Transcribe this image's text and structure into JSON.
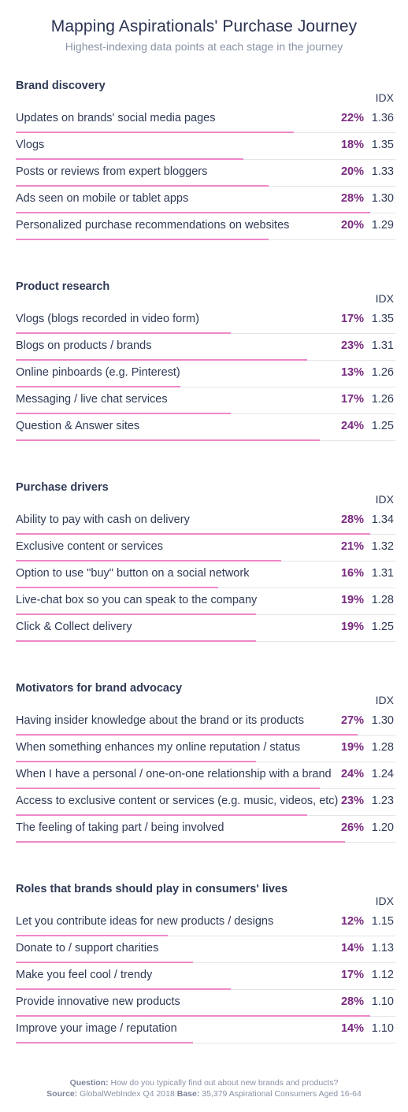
{
  "header": {
    "title": "Mapping Aspirationals' Purchase Journey",
    "subtitle": "Highest-indexing data points at each stage in the journey"
  },
  "idx_label": "IDX",
  "chart_data": {
    "type": "bar",
    "orientation": "horizontal",
    "value_max": 30,
    "sections": [
      {
        "title": "Brand discovery",
        "rows": [
          {
            "label": "Updates on brands' social media pages",
            "pct": 22,
            "pct_text": "22%",
            "idx": "1.36"
          },
          {
            "label": "Vlogs",
            "pct": 18,
            "pct_text": "18%",
            "idx": "1.35"
          },
          {
            "label": "Posts or reviews from expert bloggers",
            "pct": 20,
            "pct_text": "20%",
            "idx": "1.33"
          },
          {
            "label": "Ads seen on mobile or tablet apps",
            "pct": 28,
            "pct_text": "28%",
            "idx": "1.30"
          },
          {
            "label": "Personalized purchase recommendations on websites",
            "pct": 20,
            "pct_text": "20%",
            "idx": "1.29"
          }
        ]
      },
      {
        "title": "Product research",
        "rows": [
          {
            "label": "Vlogs (blogs recorded in video form)",
            "pct": 17,
            "pct_text": "17%",
            "idx": "1.35"
          },
          {
            "label": "Blogs on products / brands",
            "pct": 23,
            "pct_text": "23%",
            "idx": "1.31"
          },
          {
            "label": "Online pinboards (e.g. Pinterest)",
            "pct": 13,
            "pct_text": "13%",
            "idx": "1.26"
          },
          {
            "label": "Messaging / live chat services",
            "pct": 17,
            "pct_text": "17%",
            "idx": "1.26"
          },
          {
            "label": "Question & Answer sites",
            "pct": 24,
            "pct_text": "24%",
            "idx": "1.25"
          }
        ]
      },
      {
        "title": "Purchase drivers",
        "rows": [
          {
            "label": "Ability to pay with cash on delivery",
            "pct": 28,
            "pct_text": "28%",
            "idx": "1.34"
          },
          {
            "label": "Exclusive content or services",
            "pct": 21,
            "pct_text": "21%",
            "idx": "1.32"
          },
          {
            "label": "Option to use \"buy\" button on a social network",
            "pct": 16,
            "pct_text": "16%",
            "idx": "1.31"
          },
          {
            "label": "Live-chat box so you can speak to the company",
            "pct": 19,
            "pct_text": "19%",
            "idx": "1.28"
          },
          {
            "label": "Click & Collect delivery",
            "pct": 19,
            "pct_text": "19%",
            "idx": "1.25"
          }
        ]
      },
      {
        "title": "Motivators for brand advocacy",
        "rows": [
          {
            "label": "Having insider knowledge about the brand or its products",
            "pct": 27,
            "pct_text": "27%",
            "idx": "1.30"
          },
          {
            "label": "When something enhances my online reputation / status",
            "pct": 19,
            "pct_text": "19%",
            "idx": "1.28"
          },
          {
            "label": "When I have a personal / one-on-one relationship with a brand",
            "pct": 24,
            "pct_text": "24%",
            "idx": "1.24"
          },
          {
            "label": "Access to exclusive content or services (e.g. music, videos, etc)",
            "pct": 23,
            "pct_text": "23%",
            "idx": "1.23"
          },
          {
            "label": "The feeling of taking part / being involved",
            "pct": 26,
            "pct_text": "26%",
            "idx": "1.20"
          }
        ]
      },
      {
        "title": "Roles that brands should play in consumers' lives",
        "rows": [
          {
            "label": "Let you contribute ideas for new products / designs",
            "pct": 12,
            "pct_text": "12%",
            "idx": "1.15"
          },
          {
            "label": "Donate to / support charities",
            "pct": 14,
            "pct_text": "14%",
            "idx": "1.13"
          },
          {
            "label": "Make you feel cool / trendy",
            "pct": 17,
            "pct_text": "17%",
            "idx": "1.12"
          },
          {
            "label": "Provide innovative new products",
            "pct": 28,
            "pct_text": "28%",
            "idx": "1.10"
          },
          {
            "label": "Improve your image / reputation",
            "pct": 14,
            "pct_text": "14%",
            "idx": "1.10"
          }
        ]
      }
    ]
  },
  "colors": {
    "bar": "#ee88c9",
    "pct_text": "#7a2a80",
    "text": "#2f3a56",
    "muted": "#8a92a6"
  },
  "footer": {
    "question_label": "Question:",
    "question": "How do you typically find out about new brands and products?",
    "source_label": "Source:",
    "source": "GlobalWebIndex Q4 2018",
    "base_label": "Base:",
    "base": "35,379 Aspirational Consumers Aged 16-64"
  }
}
